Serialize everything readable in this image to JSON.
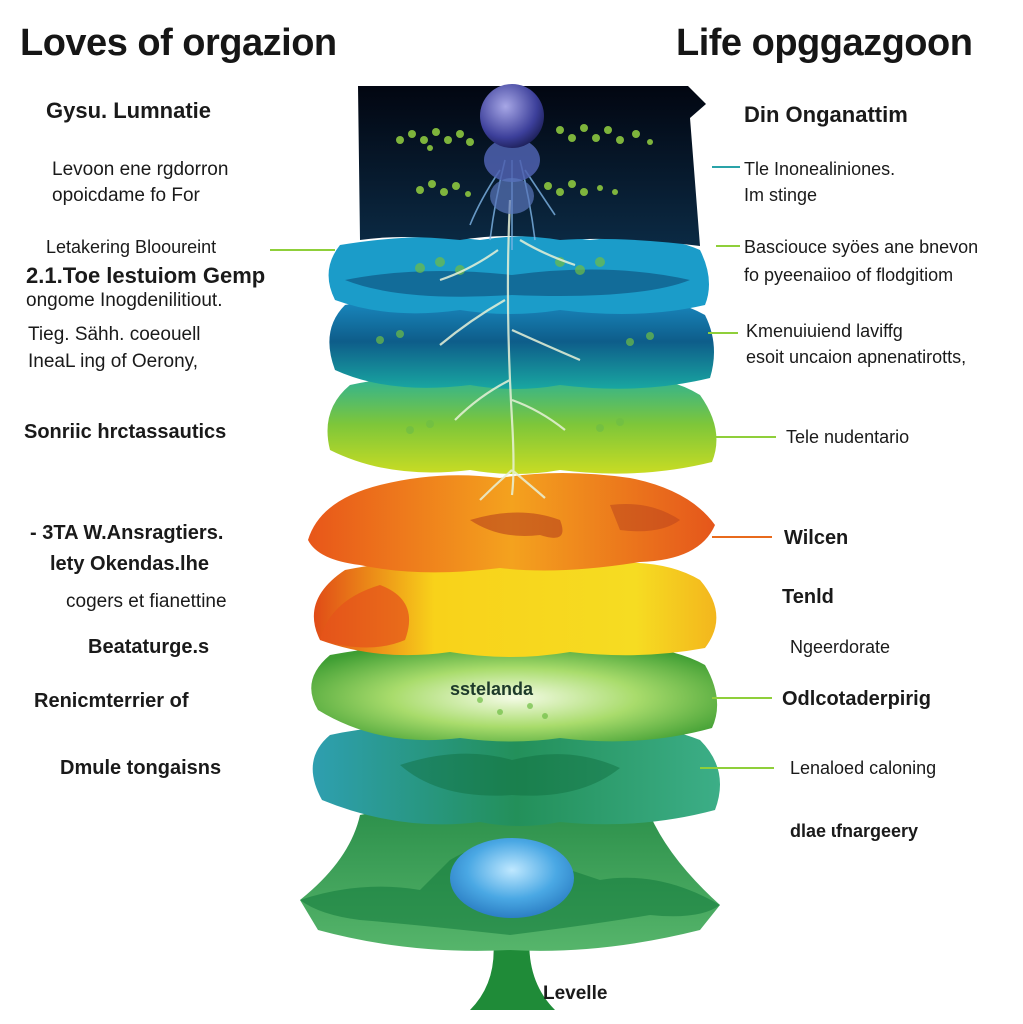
{
  "titles": {
    "left": "Loves of orgazion",
    "right": "Life opggazgoon"
  },
  "left_labels": {
    "l1": "Gysu.  Lumnatie",
    "l2a": "Levoon ene rgdorron",
    "l2b": "opoicdame fo For",
    "l3a": "Letakering Blooureint",
    "l3b": "2.1.Toe lestuiom Gemp",
    "l3c": "ongome Inogdenilitiout.",
    "l4a": "Tieg.  Sähh. coeouell",
    "l4b": "IneaL ing of Oerony,",
    "l5": "Sonriic hrctassautics",
    "l6a": "- 3TA W.Ansragtiers.",
    "l6b": "lety Okendas.lhe",
    "l6c": "cogers et fianettine",
    "l7": "Beataturge.s",
    "l8": "Renicmterrier of",
    "l9": "Dmule tongaisns"
  },
  "right_labels": {
    "r1": "Din Onganattim",
    "r2a": "Tle Inonealiniones.",
    "r2b": "Im stinge",
    "r3a": "Basciouce syöes ane bnevon",
    "r3b": "fo pyeenaiioo of flodgitiom",
    "r4a": "Kmenuiuiend laviffg",
    "r4b": "esoit uncaion apnenatirotts,",
    "r5": "Tele nudentario",
    "r6": "Wilcen",
    "r7": "Tenld",
    "r8": "Ngeerdorate",
    "r9": "Odlcotaderpirig",
    "r10": "Lenaloed caloning",
    "r11": "dlae ɩfnargeery"
  },
  "center_labels": {
    "middle": "sstelanda",
    "bottom": "Levelle"
  },
  "colors": {
    "night": "#05101f",
    "teal": "#1aa6a6",
    "lime": "#9fcf2a",
    "orange": "#ee6d1e",
    "yellow": "#f6d61c",
    "green": "#2e9c3a",
    "deep_green": "#177a44",
    "sky": "#4fb0e6",
    "leader_green": "#8fcf3a",
    "leader_orange": "#e86a1c",
    "leader_teal": "#2aa3a8"
  }
}
